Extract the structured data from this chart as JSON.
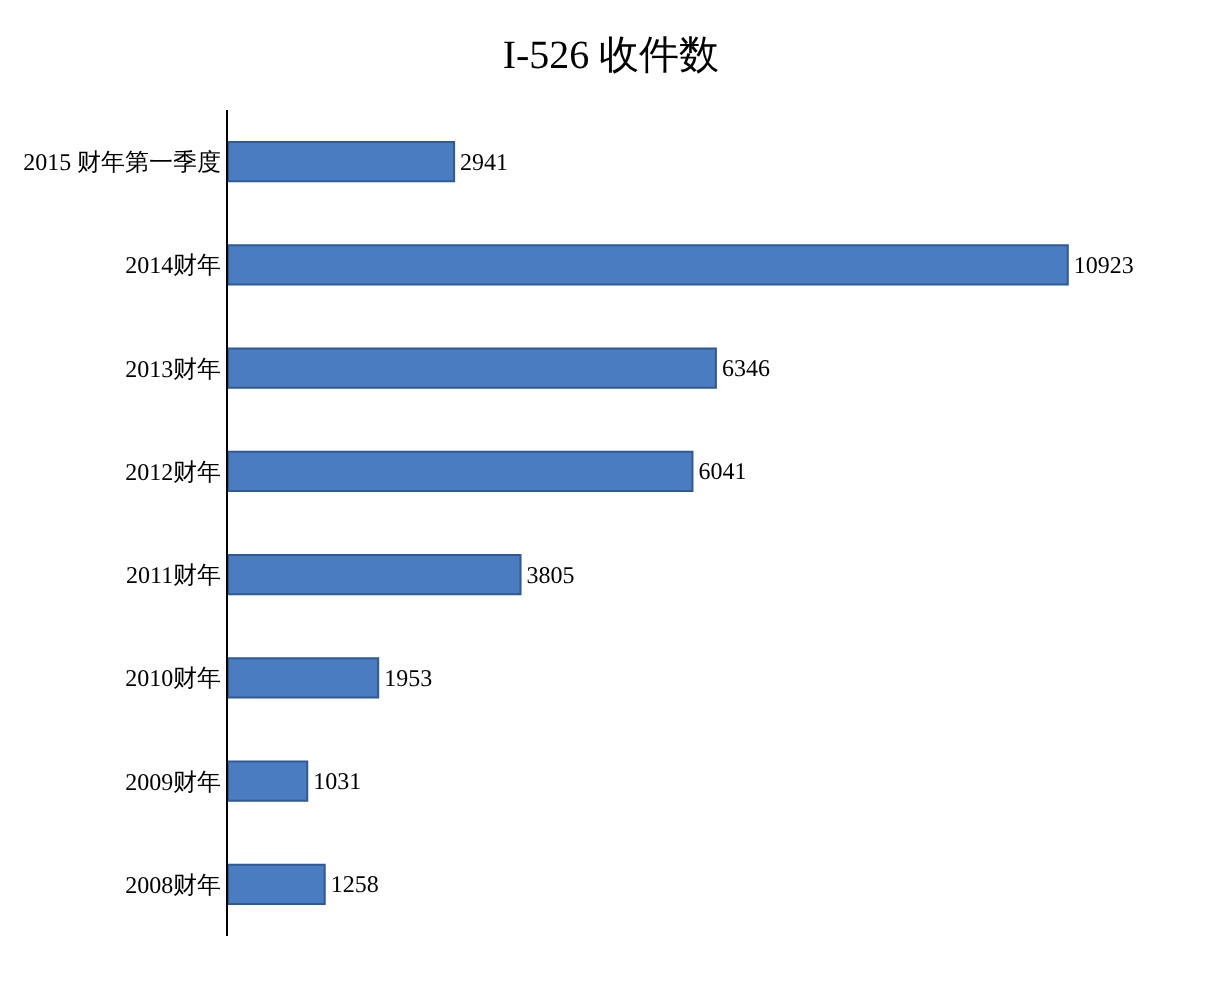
{
  "chart_data": {
    "type": "bar",
    "title": "I-526 收件数",
    "orientation": "horizontal",
    "categories": [
      "2015 财年第一季度",
      "2014财年",
      "2013财年",
      "2012财年",
      "2011财年",
      "2010财年",
      "2009财年",
      "2008财年"
    ],
    "values": [
      2941,
      10923,
      6346,
      6041,
      3805,
      1953,
      1031,
      1258
    ],
    "color": "#4a7cc2",
    "data_labels": true,
    "tick_labels": "y"
  }
}
